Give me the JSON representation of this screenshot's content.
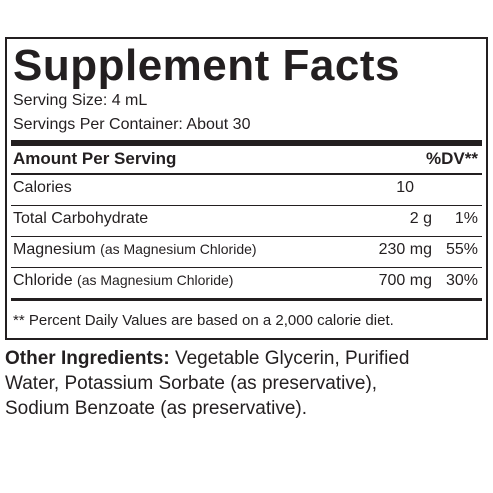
{
  "title": "Supplement Facts",
  "serving_size": "Serving Size: 4 mL",
  "servings_per_container": "Servings Per Container: About 30",
  "header": {
    "amount": "Amount Per Serving",
    "dv": "%DV**"
  },
  "rows": [
    {
      "name": "Calories",
      "amount": "10"
    },
    {
      "name": "Total Carbohydrate",
      "amount": "2 g",
      "dv": "1%"
    },
    {
      "name": "Magnesium",
      "note": "(as Magnesium Chloride)",
      "amount": "230 mg",
      "dv": "55%"
    },
    {
      "name": "Chloride",
      "note": "(as Magnesium Chloride)",
      "amount": "700 mg",
      "dv": "30%"
    }
  ],
  "footnote": "** Percent Daily Values are based on a 2,000 calorie diet.",
  "other_ingredients": {
    "label": "Other Ingredients:",
    "text": "Vegetable Glycerin, Purified Water, Potassium Sorbate (as preservative), Sodium Benzoate (as preservative)."
  }
}
